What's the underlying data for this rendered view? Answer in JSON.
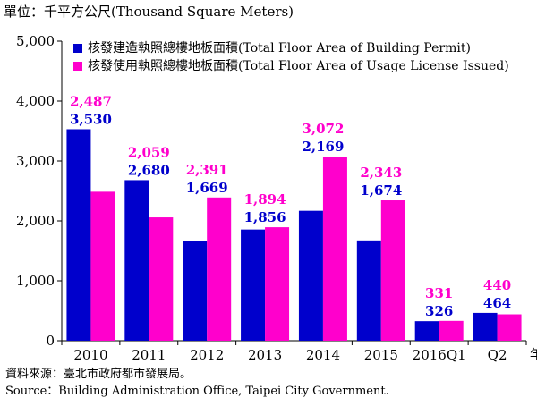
{
  "unit_label": "單位：千平方公尺(Thousand Square Meters)",
  "source_zh": "資料來源：臺北市政府都市發展局。",
  "source_en": "Source：Building Administration Office, Taipei City Government.",
  "year_suffix": "年",
  "colors": {
    "permit": "#0000cc",
    "license": "#ff00cc"
  },
  "chart_data": {
    "type": "bar",
    "title": "",
    "xlabel": "",
    "ylabel": "",
    "ylim": [
      0,
      5000
    ],
    "yticks": [
      "0",
      "1,000",
      "2,000",
      "3,000",
      "4,000",
      "5,000"
    ],
    "grid": false,
    "legend_position": "top-left",
    "categories": [
      "2010",
      "2011",
      "2012",
      "2013",
      "2014",
      "2015",
      "2016Q1",
      "Q2"
    ],
    "series": [
      {
        "name": "核發建造執照總樓地板面積(Total Floor Area of Building Permit)",
        "values": [
          3530,
          2680,
          1669,
          1856,
          2169,
          1674,
          326,
          464
        ],
        "labels": [
          "3,530",
          "2,680",
          "1,669",
          "1,856",
          "2,169",
          "1,674",
          "326",
          "464"
        ]
      },
      {
        "name": "核發使用執照總樓地板面積(Total Floor Area of Usage License Issued)",
        "values": [
          2487,
          2059,
          2391,
          1894,
          3072,
          2343,
          331,
          440
        ],
        "labels": [
          "2,487",
          "2,059",
          "2,391",
          "1,894",
          "3,072",
          "2,343",
          "331",
          "440"
        ]
      }
    ]
  }
}
